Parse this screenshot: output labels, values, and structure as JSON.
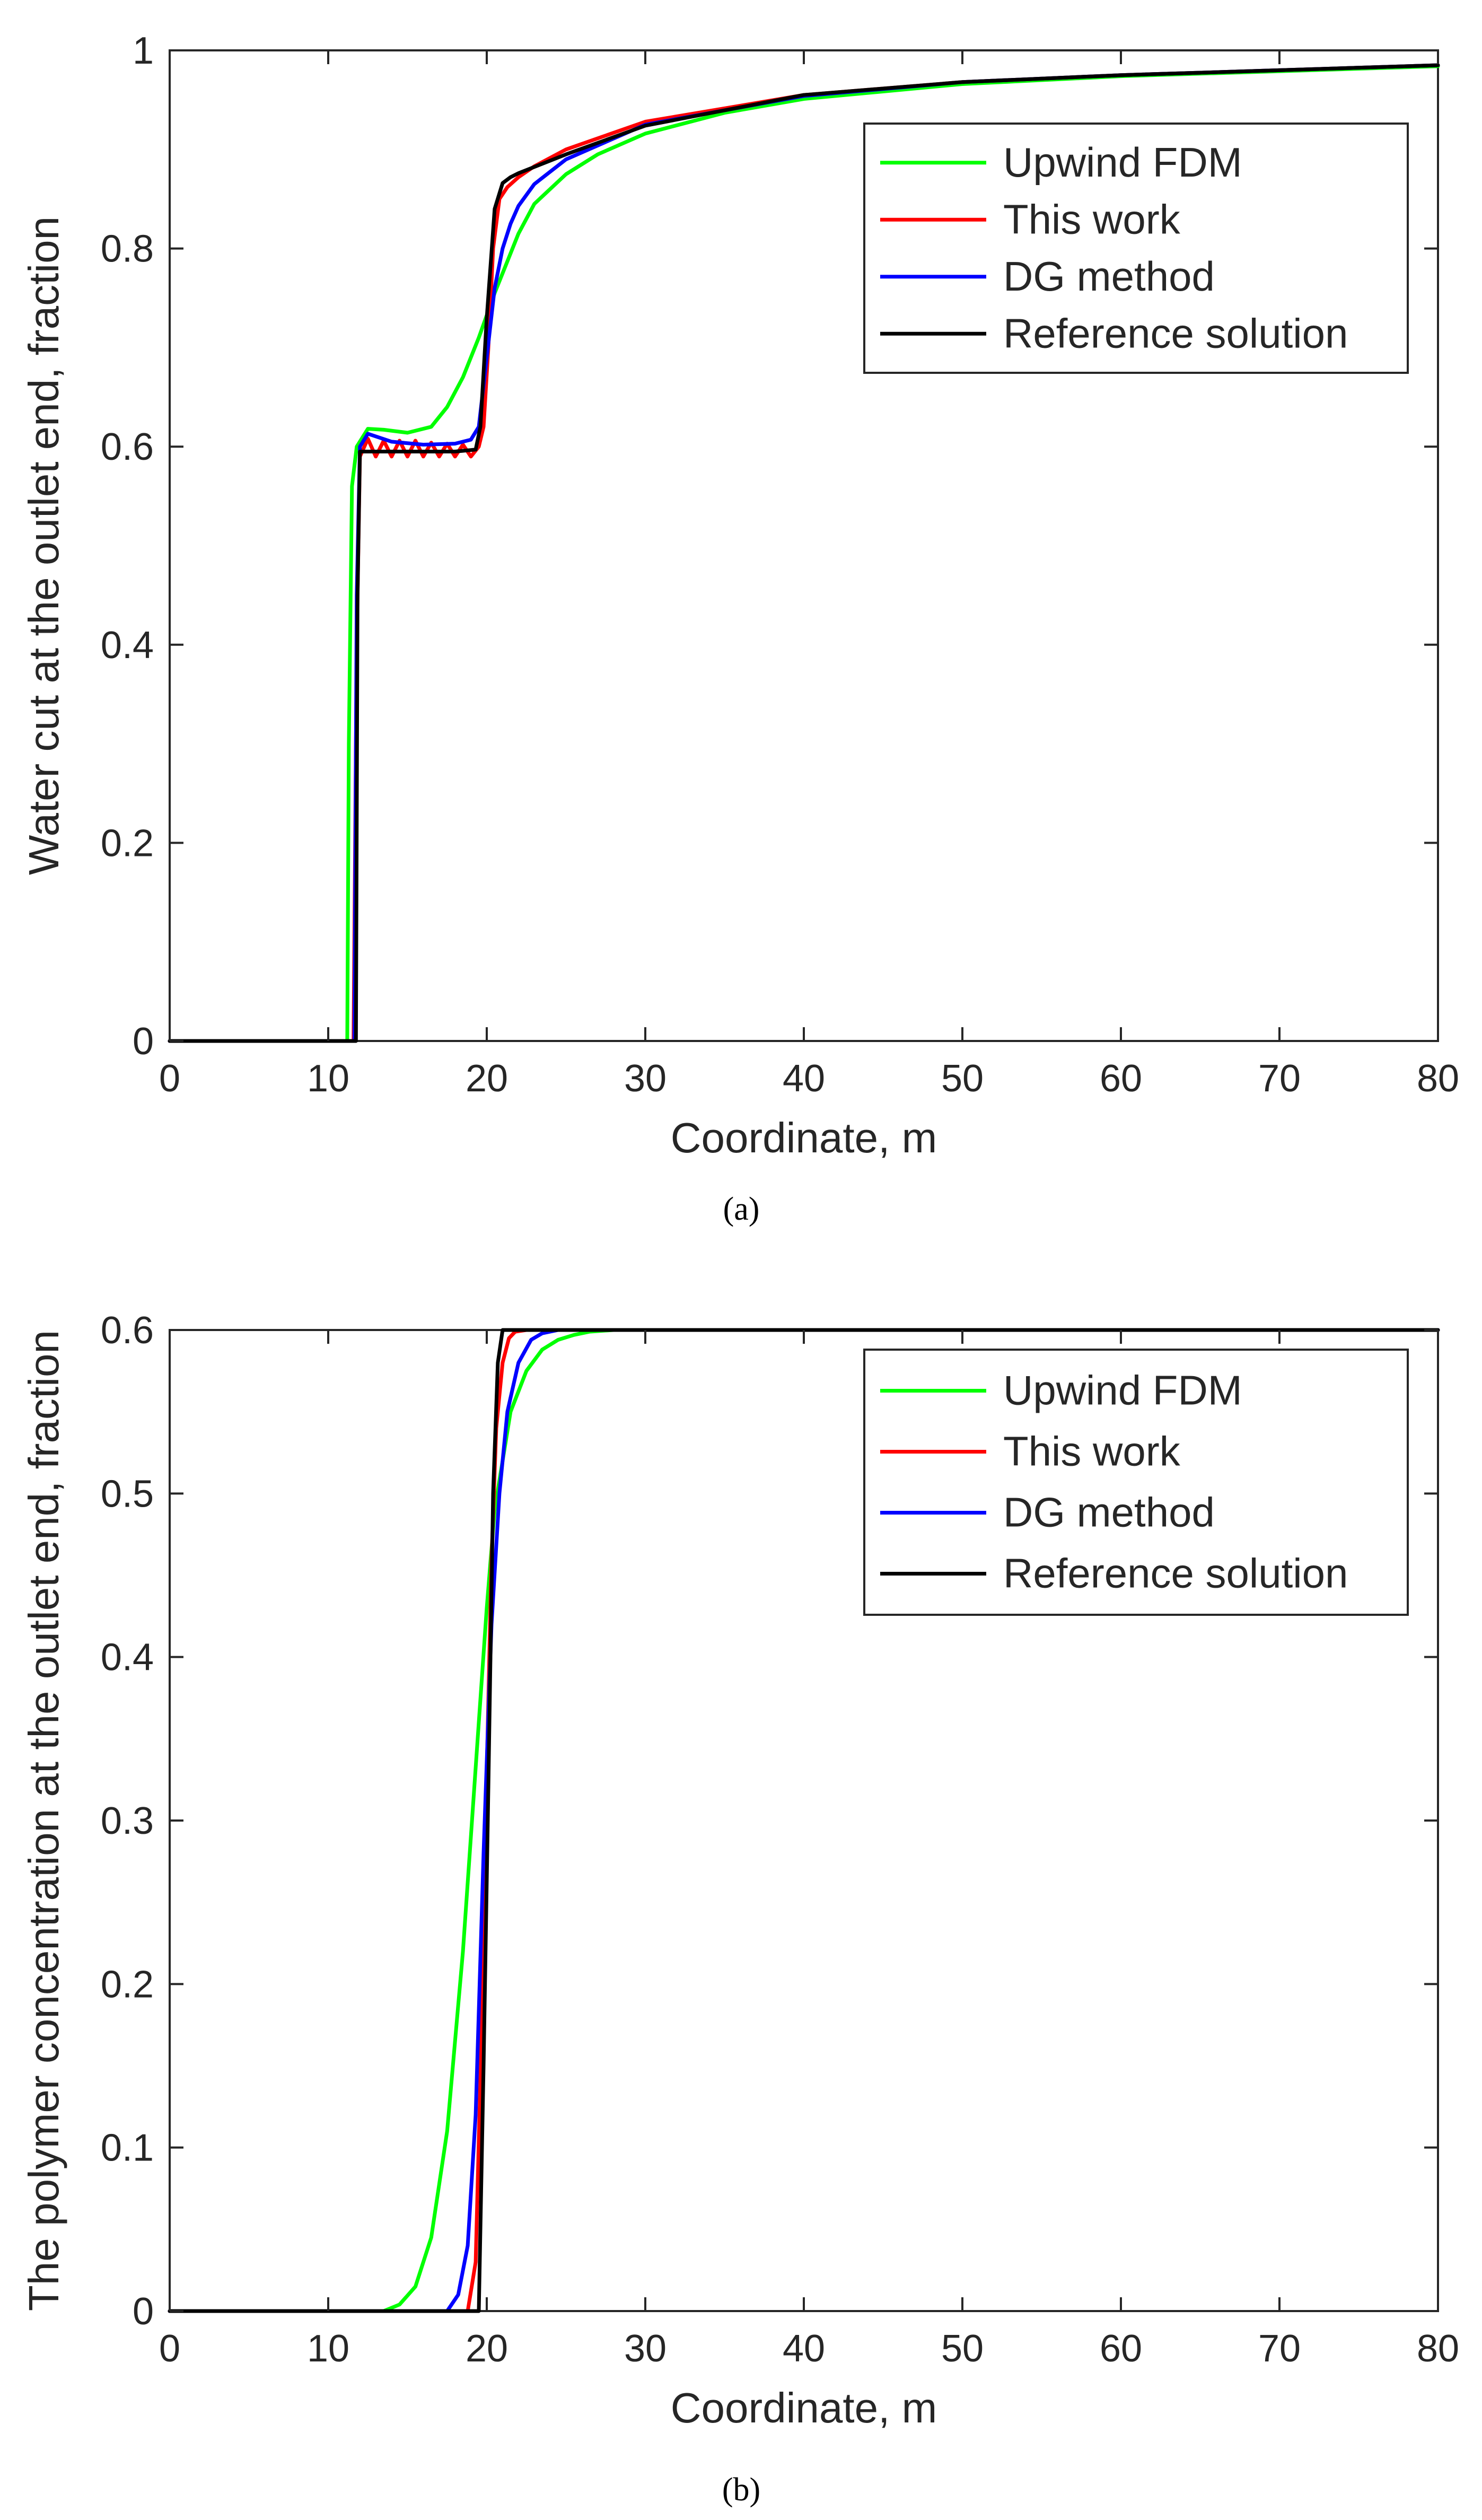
{
  "chart_data": [
    {
      "type": "line",
      "panel_label": "a",
      "xlabel": "Coordinate, m",
      "ylabel": "Water cut at the outlet end, fraction",
      "xlim": [
        0,
        80
      ],
      "ylim": [
        0,
        1
      ],
      "xticks": [
        0,
        10,
        20,
        30,
        40,
        50,
        60,
        70,
        80
      ],
      "yticks": [
        0,
        0.2,
        0.4,
        0.6,
        0.8,
        1
      ],
      "ytick_labels": [
        "0",
        "0.2",
        "0.4",
        "0.6",
        "0.8",
        "1"
      ],
      "legend_position": "top-right",
      "series": [
        {
          "name": "Upwind FDM",
          "color": "#00ff00",
          "x": [
            0,
            11.2,
            11.3,
            11.5,
            11.8,
            12.5,
            13.5,
            15,
            16.5,
            17.5,
            18.5,
            19.5,
            20.5,
            21,
            22,
            23,
            25,
            27,
            30,
            35,
            40,
            50,
            60,
            70,
            80
          ],
          "y": [
            0,
            0,
            0.3,
            0.56,
            0.6,
            0.618,
            0.617,
            0.614,
            0.62,
            0.64,
            0.67,
            0.71,
            0.755,
            0.775,
            0.815,
            0.845,
            0.875,
            0.895,
            0.916,
            0.937,
            0.951,
            0.966,
            0.974,
            0.979,
            0.984
          ]
        },
        {
          "name": "This work",
          "color": "#ff0000",
          "x": [
            0,
            11.6,
            11.8,
            12,
            12.5,
            13,
            13.5,
            14,
            14.5,
            15,
            15.5,
            16,
            16.5,
            17,
            17.5,
            18,
            18.5,
            19,
            19.5,
            19.8,
            20.1,
            20.4,
            20.8,
            21.3,
            22,
            23,
            25,
            30,
            40,
            50,
            60,
            70,
            80
          ],
          "y": [
            0,
            0,
            0.4,
            0.59,
            0.608,
            0.59,
            0.606,
            0.59,
            0.606,
            0.59,
            0.606,
            0.59,
            0.604,
            0.59,
            0.603,
            0.59,
            0.602,
            0.59,
            0.6,
            0.62,
            0.7,
            0.8,
            0.85,
            0.862,
            0.872,
            0.883,
            0.9,
            0.928,
            0.955,
            0.968,
            0.975,
            0.98,
            0.985
          ]
        },
        {
          "name": "DG method",
          "color": "#0000ff",
          "x": [
            0,
            11.65,
            11.8,
            12,
            12.5,
            14,
            16,
            18,
            19,
            19.5,
            20,
            20.5,
            21,
            21.5,
            22,
            23,
            25,
            30,
            40,
            50,
            60,
            70,
            80
          ],
          "y": [
            0,
            0,
            0.45,
            0.6,
            0.613,
            0.605,
            0.602,
            0.603,
            0.607,
            0.62,
            0.69,
            0.76,
            0.8,
            0.825,
            0.843,
            0.865,
            0.89,
            0.925,
            0.954,
            0.968,
            0.975,
            0.98,
            0.985
          ]
        },
        {
          "name": "Reference solution",
          "color": "#000000",
          "x": [
            0,
            11.75,
            11.85,
            12,
            14,
            16,
            18,
            19.3,
            19.6,
            20,
            20.5,
            21,
            21.5,
            22,
            25,
            30,
            40,
            50,
            60,
            70,
            80
          ],
          "y": [
            0,
            0,
            0.45,
            0.595,
            0.595,
            0.595,
            0.595,
            0.597,
            0.62,
            0.73,
            0.84,
            0.866,
            0.872,
            0.876,
            0.895,
            0.924,
            0.955,
            0.968,
            0.975,
            0.98,
            0.985
          ]
        }
      ]
    },
    {
      "type": "line",
      "panel_label": "b",
      "xlabel": "Coordinate, m",
      "ylabel": "The polymer concentration at the outlet end, fraction",
      "xlim": [
        0,
        80
      ],
      "ylim": [
        0,
        0.6
      ],
      "xticks": [
        0,
        10,
        20,
        30,
        40,
        50,
        60,
        70,
        80
      ],
      "yticks": [
        0,
        0.1,
        0.2,
        0.3,
        0.4,
        0.5,
        0.6
      ],
      "ytick_labels": [
        "0",
        "0.1",
        "0.2",
        "0.3",
        "0.4",
        "0.5",
        "0.6"
      ],
      "legend_position": "top-right",
      "series": [
        {
          "name": "Upwind FDM",
          "color": "#00ff00",
          "x": [
            0,
            13.5,
            14.5,
            15.5,
            16.5,
            17.5,
            18.5,
            19.5,
            20,
            20.5,
            21.5,
            22.5,
            23.5,
            24.5,
            25.5,
            26.5,
            28,
            30,
            80
          ],
          "y": [
            0,
            0,
            0.004,
            0.015,
            0.045,
            0.11,
            0.22,
            0.36,
            0.43,
            0.49,
            0.55,
            0.575,
            0.588,
            0.594,
            0.597,
            0.599,
            0.6,
            0.6,
            0.6
          ]
        },
        {
          "name": "This work",
          "color": "#ff0000",
          "x": [
            0,
            18.8,
            19.3,
            19.7,
            20,
            20.3,
            20.6,
            21,
            21.4,
            21.8,
            22.5,
            80
          ],
          "y": [
            0,
            0,
            0.03,
            0.18,
            0.33,
            0.46,
            0.54,
            0.58,
            0.595,
            0.599,
            0.6,
            0.6
          ]
        },
        {
          "name": "DG method",
          "color": "#0000ff",
          "x": [
            0,
            17.5,
            18.2,
            18.8,
            19.3,
            19.8,
            20.3,
            20.8,
            21.3,
            22,
            22.8,
            23.5,
            24.5,
            80
          ],
          "y": [
            0,
            0,
            0.01,
            0.04,
            0.12,
            0.28,
            0.42,
            0.5,
            0.55,
            0.58,
            0.594,
            0.598,
            0.6,
            0.6
          ]
        },
        {
          "name": "Reference solution",
          "color": "#000000",
          "x": [
            0,
            19.5,
            19.8,
            20.1,
            20.4,
            20.7,
            21,
            80
          ],
          "y": [
            0,
            0,
            0.15,
            0.32,
            0.5,
            0.58,
            0.6,
            0.6
          ]
        }
      ]
    }
  ],
  "captions": [
    "(a)",
    "(b)"
  ]
}
